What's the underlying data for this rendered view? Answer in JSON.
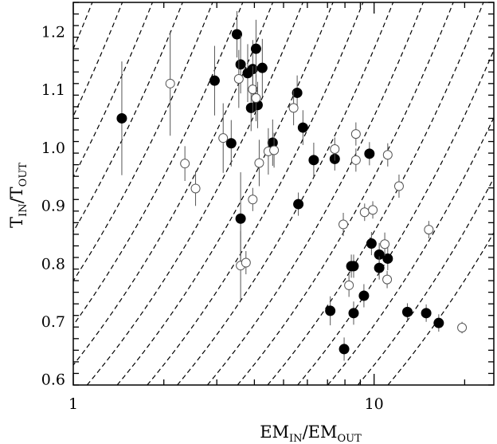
{
  "chart_data": {
    "type": "scatter",
    "xlabel": {
      "main1": "EM",
      "sub1": "IN",
      "slash": "/",
      "main2": "EM",
      "sub2": "OUT"
    },
    "ylabel": {
      "main1": "T",
      "sub1": "IN",
      "slash": "/",
      "main2": "T",
      "sub2": "OUT"
    },
    "xscale": "log",
    "xlim": [
      1,
      25
    ],
    "ylim": [
      0.59,
      1.25
    ],
    "x_tick_labels": [
      {
        "value": 1,
        "label": "1"
      },
      {
        "value": 10,
        "label": "10"
      }
    ],
    "y_tick_labels": [
      {
        "value": 0.6,
        "label": "0.6"
      },
      {
        "value": 0.7,
        "label": "0.7"
      },
      {
        "value": 0.8,
        "label": "0.8"
      },
      {
        "value": 0.9,
        "label": "0.9"
      },
      {
        "value": 1.0,
        "label": "1.0"
      },
      {
        "value": 1.1,
        "label": "1.1"
      },
      {
        "value": 1.2,
        "label": "1.2"
      }
    ],
    "reference_curves": {
      "style": "dashed",
      "form": "EM_ratio proportional to (T_ratio)^2.2",
      "exponent": 2.2,
      "x_at_T1": [
        0.447,
        0.562,
        0.708,
        0.891,
        1.122,
        1.413,
        1.778,
        2.239,
        2.818,
        3.548,
        4.467,
        5.623,
        7.079,
        8.913,
        11.22,
        14.13,
        17.78,
        22.39,
        28.18,
        35.48
      ]
    },
    "series": [
      {
        "marker": "filled-circle",
        "points": [
          {
            "x": 1.45,
            "y": 1.05,
            "yerr": 0.098
          },
          {
            "x": 3.5,
            "y": 1.195,
            "yerr": 0.04
          },
          {
            "x": 2.95,
            "y": 1.115,
            "yerr": 0.06
          },
          {
            "x": 3.6,
            "y": 1.143,
            "yerr": 0.05
          },
          {
            "x": 3.8,
            "y": 1.128,
            "yerr": 0.05
          },
          {
            "x": 3.95,
            "y": 1.135,
            "yerr": 0.05
          },
          {
            "x": 4.05,
            "y": 1.17,
            "yerr": 0.05
          },
          {
            "x": 4.25,
            "y": 1.137,
            "yerr": 0.05
          },
          {
            "x": 3.9,
            "y": 1.068,
            "yerr": 0.04
          },
          {
            "x": 4.1,
            "y": 1.073,
            "yerr": 0.04
          },
          {
            "x": 3.35,
            "y": 1.007,
            "yerr": 0.04
          },
          {
            "x": 4.6,
            "y": 1.008,
            "yerr": 0.04
          },
          {
            "x": 5.55,
            "y": 1.094,
            "yerr": 0.03
          },
          {
            "x": 5.8,
            "y": 1.034,
            "yerr": 0.03
          },
          {
            "x": 6.3,
            "y": 0.978,
            "yerr": 0.03
          },
          {
            "x": 7.4,
            "y": 0.98,
            "yerr": 0.02
          },
          {
            "x": 9.65,
            "y": 0.989,
            "yerr": 0.02
          },
          {
            "x": 5.6,
            "y": 0.902,
            "yerr": 0.02
          },
          {
            "x": 3.6,
            "y": 0.877,
            "yerr": 0.08
          },
          {
            "x": 8.4,
            "y": 0.795,
            "yerr": 0.02
          },
          {
            "x": 8.55,
            "y": 0.795,
            "yerr": 0.02
          },
          {
            "x": 9.8,
            "y": 0.834,
            "yerr": 0.02
          },
          {
            "x": 10.4,
            "y": 0.815,
            "yerr": 0.02
          },
          {
            "x": 11.1,
            "y": 0.808,
            "yerr": 0.02
          },
          {
            "x": 10.4,
            "y": 0.792,
            "yerr": 0.02
          },
          {
            "x": 9.25,
            "y": 0.744,
            "yerr": 0.02
          },
          {
            "x": 7.15,
            "y": 0.718,
            "yerr": 0.025
          },
          {
            "x": 8.55,
            "y": 0.714,
            "yerr": 0.02
          },
          {
            "x": 7.95,
            "y": 0.652,
            "yerr": 0.02
          },
          {
            "x": 12.9,
            "y": 0.716,
            "yerr": 0.015
          },
          {
            "x": 14.9,
            "y": 0.714,
            "yerr": 0.015
          },
          {
            "x": 16.4,
            "y": 0.697,
            "yerr": 0.015
          }
        ]
      },
      {
        "marker": "open-circle",
        "points": [
          {
            "x": 2.1,
            "y": 1.11,
            "yerr": 0.09
          },
          {
            "x": 2.35,
            "y": 0.972,
            "yerr": 0.03
          },
          {
            "x": 2.55,
            "y": 0.929,
            "yerr": 0.03
          },
          {
            "x": 3.15,
            "y": 1.016,
            "yerr": 0.06
          },
          {
            "x": 3.55,
            "y": 1.118,
            "yerr": 0.05
          },
          {
            "x": 3.95,
            "y": 1.1,
            "yerr": 0.04
          },
          {
            "x": 4.05,
            "y": 1.085,
            "yerr": 0.04
          },
          {
            "x": 4.15,
            "y": 0.973,
            "yerr": 0.04
          },
          {
            "x": 4.45,
            "y": 0.993,
            "yerr": 0.04
          },
          {
            "x": 4.65,
            "y": 0.995,
            "yerr": 0.03
          },
          {
            "x": 5.4,
            "y": 1.068,
            "yerr": 0.03
          },
          {
            "x": 3.95,
            "y": 0.91,
            "yerr": 0.02
          },
          {
            "x": 3.6,
            "y": 0.796,
            "yerr": 0.06
          },
          {
            "x": 3.75,
            "y": 0.801,
            "yerr": 0.02
          },
          {
            "x": 7.4,
            "y": 0.997,
            "yerr": 0.02
          },
          {
            "x": 8.7,
            "y": 1.023,
            "yerr": 0.02
          },
          {
            "x": 8.7,
            "y": 0.978,
            "yerr": 0.02
          },
          {
            "x": 9.3,
            "y": 0.888,
            "yerr": 0.015
          },
          {
            "x": 9.9,
            "y": 0.892,
            "yerr": 0.015
          },
          {
            "x": 11.1,
            "y": 0.987,
            "yerr": 0.02
          },
          {
            "x": 12.1,
            "y": 0.933,
            "yerr": 0.02
          },
          {
            "x": 7.9,
            "y": 0.867,
            "yerr": 0.02
          },
          {
            "x": 8.25,
            "y": 0.762,
            "yerr": 0.02
          },
          {
            "x": 10.85,
            "y": 0.833,
            "yerr": 0.02
          },
          {
            "x": 11.05,
            "y": 0.772,
            "yerr": 0.015
          },
          {
            "x": 15.2,
            "y": 0.858,
            "yerr": 0.015
          },
          {
            "x": 19.6,
            "y": 0.689,
            "yerr": 0.01
          }
        ]
      }
    ]
  }
}
